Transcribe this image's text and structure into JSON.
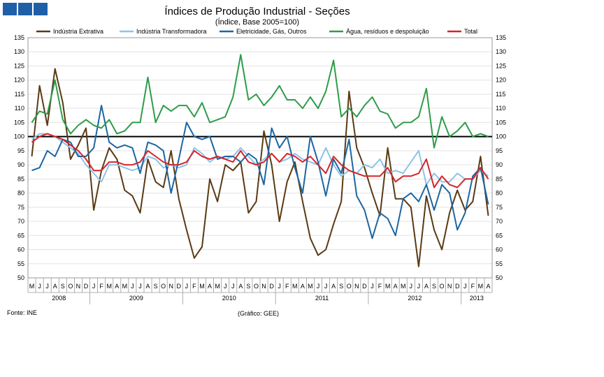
{
  "chart_data": {
    "type": "line",
    "title": "Índices de Produção Industrial - Seções",
    "subtitle": "(Índice, Base 2005=100)",
    "ylim": [
      50,
      135
    ],
    "yticks": [
      50,
      55,
      60,
      65,
      70,
      75,
      80,
      85,
      90,
      95,
      100,
      105,
      110,
      115,
      120,
      125,
      130,
      135
    ],
    "reference_line": 100,
    "months": [
      "M",
      "J",
      "J",
      "A",
      "S",
      "O",
      "N",
      "D",
      "J",
      "F",
      "M",
      "A",
      "M",
      "J",
      "J",
      "A",
      "S",
      "O",
      "N",
      "D",
      "J",
      "F",
      "M",
      "A",
      "M",
      "J",
      "J",
      "A",
      "S",
      "O",
      "N",
      "D",
      "J",
      "F",
      "M",
      "A",
      "M",
      "J",
      "J",
      "A",
      "S",
      "O",
      "N",
      "D",
      "J",
      "F",
      "M",
      "A",
      "M",
      "J",
      "J",
      "A",
      "S",
      "O",
      "N",
      "D",
      "J",
      "F",
      "M",
      "A"
    ],
    "years": [
      {
        "label": "2008",
        "start": 0,
        "count": 8
      },
      {
        "label": "2009",
        "start": 8,
        "count": 12
      },
      {
        "label": "2010",
        "start": 20,
        "count": 12
      },
      {
        "label": "2011",
        "start": 32,
        "count": 12
      },
      {
        "label": "2012",
        "start": 44,
        "count": 12
      },
      {
        "label": "2013",
        "start": 56,
        "count": 4
      }
    ],
    "series": [
      {
        "name": "Indústria Extrativa",
        "color": "#5a3a14",
        "values": [
          93,
          118,
          104,
          124,
          112,
          92,
          97,
          103,
          74,
          88,
          96,
          92,
          81,
          79,
          73,
          92,
          84,
          82,
          95,
          78,
          67,
          57,
          61,
          85,
          77,
          90,
          88,
          91,
          73,
          77,
          102,
          90,
          70,
          84,
          91,
          77,
          64,
          58,
          60,
          69,
          77,
          116,
          96,
          89,
          80,
          72,
          96,
          78,
          78,
          75,
          54,
          79,
          67,
          60,
          73,
          81,
          74,
          77,
          93,
          72
        ]
      },
      {
        "name": "Indústria Transformadora",
        "color": "#8cc4e8",
        "values": [
          99,
          101,
          101,
          100,
          98,
          96,
          94,
          90,
          87,
          84,
          90,
          90,
          89,
          88,
          89,
          93,
          92,
          89,
          90,
          89,
          90,
          96,
          94,
          91,
          93,
          92,
          93,
          96,
          93,
          90,
          92,
          94,
          91,
          92,
          94,
          92,
          91,
          90,
          96,
          90,
          86,
          88,
          87,
          90,
          89,
          92,
          87,
          88,
          87,
          91,
          95,
          83,
          87,
          84,
          84,
          87,
          85,
          85,
          88,
          86
        ]
      },
      {
        "name": "Eletricidade, Gás, Outros",
        "color": "#1c66a3",
        "values": [
          88,
          89,
          95,
          93,
          99,
          98,
          93,
          93,
          96,
          111,
          98,
          96,
          97,
          96,
          87,
          98,
          97,
          95,
          80,
          92,
          105,
          100,
          99,
          100,
          92,
          93,
          93,
          91,
          94,
          92,
          83,
          103,
          96,
          100,
          89,
          80,
          100,
          91,
          79,
          92,
          87,
          99,
          79,
          74,
          64,
          73,
          71,
          65,
          78,
          80,
          77,
          83,
          74,
          83,
          80,
          67,
          73,
          86,
          89,
          76
        ]
      },
      {
        "name": "Água, resíduos e despoluição",
        "color": "#2e9c4a",
        "values": [
          105,
          109,
          108,
          120,
          106,
          101,
          104,
          106,
          104,
          103,
          106,
          101,
          102,
          105,
          105,
          121,
          105,
          111,
          109,
          111,
          111,
          107,
          112,
          105,
          106,
          107,
          114,
          129,
          113,
          115,
          111,
          114,
          118,
          113,
          113,
          110,
          114,
          110,
          116,
          127,
          107,
          110,
          107,
          111,
          114,
          109,
          108,
          103,
          105,
          105,
          107,
          117,
          96,
          107,
          100,
          102,
          105,
          100,
          101,
          100
        ]
      },
      {
        "name": "Total",
        "color": "#d6242a",
        "values": [
          98,
          100,
          101,
          100,
          99,
          97,
          95,
          92,
          88,
          88,
          91,
          91,
          90,
          90,
          91,
          95,
          93,
          91,
          90,
          90,
          91,
          95,
          93,
          92,
          93,
          92,
          91,
          95,
          91,
          90,
          91,
          94,
          91,
          94,
          93,
          91,
          93,
          90,
          87,
          93,
          90,
          88,
          87,
          86,
          86,
          86,
          89,
          84,
          86,
          86,
          87,
          92,
          82,
          86,
          83,
          82,
          85,
          85,
          89,
          85
        ]
      }
    ],
    "source_note": "Fonte: INE",
    "graphic_note": "(Gráfico: GEE)"
  }
}
